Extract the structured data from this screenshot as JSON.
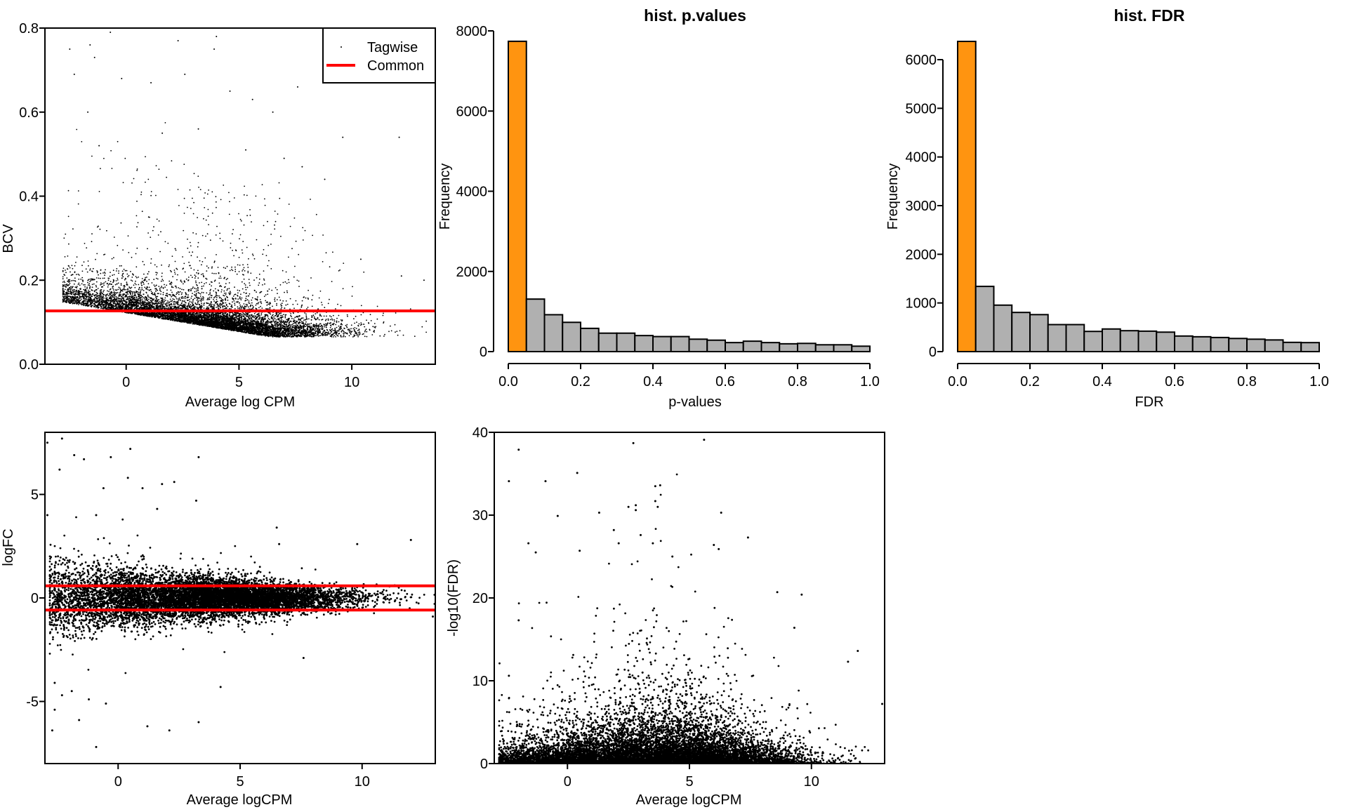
{
  "chart_data": [
    {
      "id": "bcv",
      "type": "scatter",
      "title": "",
      "xlabel": "Average log CPM",
      "ylabel": "BCV",
      "xlim": [
        -3.6,
        13.7
      ],
      "ylim": [
        0,
        0.8
      ],
      "xticks": [
        "0",
        "5",
        "10"
      ],
      "xtick_values": [
        0,
        5,
        10
      ],
      "yticks": [
        "0.0",
        "0.2",
        "0.4",
        "0.6",
        "0.8"
      ],
      "ytick_values": [
        0,
        0.2,
        0.4,
        0.6,
        0.8
      ],
      "grid": false,
      "legend": {
        "placement": "top-right",
        "entries": [
          {
            "label": "Tagwise",
            "kind": "point",
            "color": "#000000"
          },
          {
            "label": "Common",
            "kind": "line",
            "color": "#ff0000"
          }
        ]
      },
      "hlines": [
        {
          "y": 0.127,
          "color": "#ff0000"
        }
      ],
      "points": [
        [
          -2.5,
          0.75
        ],
        [
          -2.3,
          0.69
        ],
        [
          -1.6,
          0.76
        ],
        [
          -1.4,
          0.73
        ],
        [
          -0.7,
          0.79
        ],
        [
          0,
          0.8
        ],
        [
          0.4,
          0.8
        ],
        [
          2.3,
          0.77
        ],
        [
          4.0,
          0.78
        ],
        [
          3.9,
          0.75
        ],
        [
          -0.2,
          0.68
        ],
        [
          1.1,
          0.67
        ],
        [
          2.6,
          0.69
        ],
        [
          4.6,
          0.65
        ],
        [
          5.6,
          0.63
        ],
        [
          6.5,
          0.6
        ],
        [
          7.6,
          0.66
        ],
        [
          9.6,
          0.54
        ],
        [
          12.1,
          0.54
        ],
        [
          5.3,
          0.51
        ],
        [
          7.0,
          0.49
        ],
        [
          7.8,
          0.47
        ],
        [
          8.8,
          0.44
        ],
        [
          -1.7,
          0.6
        ],
        [
          -1.2,
          0.52
        ],
        [
          1.6,
          0.55
        ],
        [
          3.2,
          0.56
        ],
        [
          10.4,
          0.25
        ],
        [
          12.2,
          0.21
        ],
        [
          13.2,
          0.2
        ]
      ]
    },
    {
      "id": "hist-pvalues",
      "type": "bar",
      "title": "hist. p.values",
      "xlabel": "p-values",
      "ylabel": "Frequency",
      "bin_width": 0.05,
      "categories": [
        "0.00-0.05",
        "0.05-0.10",
        "0.10-0.15",
        "0.15-0.20",
        "0.20-0.25",
        "0.25-0.30",
        "0.30-0.35",
        "0.35-0.40",
        "0.40-0.45",
        "0.45-0.50",
        "0.50-0.55",
        "0.55-0.60",
        "0.60-0.65",
        "0.65-0.70",
        "0.70-0.75",
        "0.75-0.80",
        "0.80-0.85",
        "0.85-0.90",
        "0.90-0.95",
        "0.95-1.00"
      ],
      "values": [
        7740,
        1310,
        920,
        730,
        580,
        460,
        460,
        400,
        375,
        375,
        310,
        285,
        225,
        260,
        225,
        195,
        205,
        170,
        170,
        135
      ],
      "highlight_color": "#ff9410",
      "bar_color": "#b0b0b0",
      "xlim": [
        0,
        1
      ],
      "ylim": [
        0,
        8000
      ],
      "xticks": [
        "0.0",
        "0.2",
        "0.4",
        "0.6",
        "0.8",
        "1.0"
      ],
      "xtick_values": [
        0,
        0.2,
        0.4,
        0.6,
        0.8,
        1.0
      ],
      "yticks": [
        "0",
        "2000",
        "4000",
        "6000",
        "8000"
      ],
      "ytick_values": [
        0,
        2000,
        4000,
        6000,
        8000
      ],
      "grid": false
    },
    {
      "id": "hist-fdr",
      "type": "bar",
      "title": "hist. FDR",
      "xlabel": "FDR",
      "ylabel": "Frequency",
      "bin_width": 0.05,
      "categories": [
        "0.00-0.05",
        "0.05-0.10",
        "0.10-0.15",
        "0.15-0.20",
        "0.20-0.25",
        "0.25-0.30",
        "0.30-0.35",
        "0.35-0.40",
        "0.40-0.45",
        "0.45-0.50",
        "0.50-0.55",
        "0.55-0.60",
        "0.60-0.65",
        "0.65-0.70",
        "0.70-0.75",
        "0.75-0.80",
        "0.80-0.85",
        "0.85-0.90",
        "0.90-0.95",
        "0.95-1.00"
      ],
      "values": [
        6375,
        1340,
        955,
        805,
        760,
        555,
        555,
        415,
        465,
        430,
        420,
        400,
        320,
        305,
        290,
        270,
        255,
        240,
        190,
        185
      ],
      "highlight_color": "#ff9410",
      "bar_color": "#b0b0b0",
      "xlim": [
        0,
        1
      ],
      "ylim": [
        0,
        6000
      ],
      "xticks": [
        "0.0",
        "0.2",
        "0.4",
        "0.6",
        "0.8",
        "1.0"
      ],
      "xtick_values": [
        0,
        0.2,
        0.4,
        0.6,
        0.8,
        1.0
      ],
      "yticks": [
        "0",
        "1000",
        "2000",
        "3000",
        "4000",
        "5000",
        "6000"
      ],
      "ytick_values": [
        0,
        1000,
        2000,
        3000,
        4000,
        5000,
        6000
      ],
      "grid": false
    },
    {
      "id": "smear",
      "type": "scatter",
      "title": "",
      "xlabel": "Average logCPM",
      "ylabel": "logFC",
      "xlim": [
        -3.0,
        13.0
      ],
      "ylim": [
        -8,
        8
      ],
      "xticks": [
        "0",
        "5",
        "10"
      ],
      "xtick_values": [
        0,
        5,
        10
      ],
      "yticks": [
        "-5",
        "0",
        "5"
      ],
      "ytick_values": [
        -5,
        0,
        5
      ],
      "grid": false,
      "hlines": [
        {
          "y": 0.585,
          "color": "#ff0000"
        },
        {
          "y": -0.585,
          "color": "#ff0000"
        }
      ],
      "points": [
        [
          -2.9,
          7.5
        ],
        [
          -2.3,
          7.7
        ],
        [
          -1.8,
          6.9
        ],
        [
          -1.4,
          6.7
        ],
        [
          -0.3,
          6.8
        ],
        [
          0.5,
          7.2
        ],
        [
          3.3,
          6.8
        ],
        [
          -2.4,
          6.2
        ],
        [
          0.4,
          5.8
        ],
        [
          1.8,
          5.5
        ],
        [
          2.3,
          5.6
        ],
        [
          1.0,
          5.3
        ],
        [
          -0.6,
          5.3
        ],
        [
          3.2,
          4.7
        ],
        [
          -2.9,
          4.0
        ],
        [
          -0.9,
          4.0
        ],
        [
          1.6,
          4.3
        ],
        [
          6.5,
          3.4
        ],
        [
          6.6,
          2.6
        ],
        [
          9.8,
          2.6
        ],
        [
          12.0,
          2.8
        ],
        [
          -2.6,
          -4.1
        ],
        [
          -2.3,
          -4.7
        ],
        [
          -1.9,
          -4.5
        ],
        [
          -1.2,
          -4.9
        ],
        [
          -0.5,
          -5.1
        ],
        [
          -2.6,
          -5.4
        ],
        [
          -1.6,
          -5.9
        ],
        [
          -2.7,
          -6.4
        ],
        [
          1.2,
          -6.2
        ],
        [
          2.1,
          -6.4
        ],
        [
          3.3,
          -6.0
        ],
        [
          -0.9,
          -7.2
        ],
        [
          4.2,
          -4.3
        ],
        [
          7.6,
          -2.9
        ],
        [
          12.9,
          -0.9
        ]
      ]
    },
    {
      "id": "volcano",
      "type": "scatter",
      "title": "",
      "xlabel": "Average logCPM",
      "ylabel": "-log10(FDR)",
      "xlim": [
        -3.0,
        13.0
      ],
      "ylim": [
        0,
        40
      ],
      "xticks": [
        "0",
        "5",
        "10"
      ],
      "xtick_values": [
        0,
        5,
        10
      ],
      "yticks": [
        "0",
        "10",
        "20",
        "30",
        "40"
      ],
      "ytick_values": [
        0,
        10,
        20,
        30,
        40
      ],
      "grid": false,
      "points": [
        [
          -2.0,
          37.9
        ],
        [
          -2.4,
          34.1
        ],
        [
          -0.9,
          34.1
        ],
        [
          0.4,
          35.1
        ],
        [
          2.7,
          38.7
        ],
        [
          5.6,
          39.1
        ],
        [
          3.6,
          33.5
        ],
        [
          3.8,
          33.6
        ],
        [
          3.6,
          31.7
        ],
        [
          3.7,
          31.0
        ],
        [
          2.5,
          31.0
        ],
        [
          2.8,
          31.2
        ],
        [
          2.8,
          30.6
        ],
        [
          6.3,
          30.3
        ],
        [
          1.3,
          30.3
        ],
        [
          -0.4,
          29.9
        ],
        [
          1.9,
          28.2
        ],
        [
          7.4,
          27.3
        ],
        [
          -1.6,
          26.6
        ],
        [
          2.1,
          26.6
        ],
        [
          3.5,
          26.6
        ],
        [
          6.0,
          26.4
        ],
        [
          6.2,
          25.9
        ],
        [
          -1.3,
          25.5
        ],
        [
          0.5,
          25.7
        ],
        [
          4.3,
          25.0
        ],
        [
          3.0,
          27.6
        ],
        [
          -2.0,
          17.3
        ],
        [
          -2.4,
          10.6
        ],
        [
          8.6,
          20.7
        ],
        [
          9.6,
          20.4
        ],
        [
          9.3,
          16.4
        ],
        [
          11.9,
          13.6
        ],
        [
          11.5,
          12.3
        ],
        [
          12.9,
          7.2
        ]
      ]
    }
  ]
}
